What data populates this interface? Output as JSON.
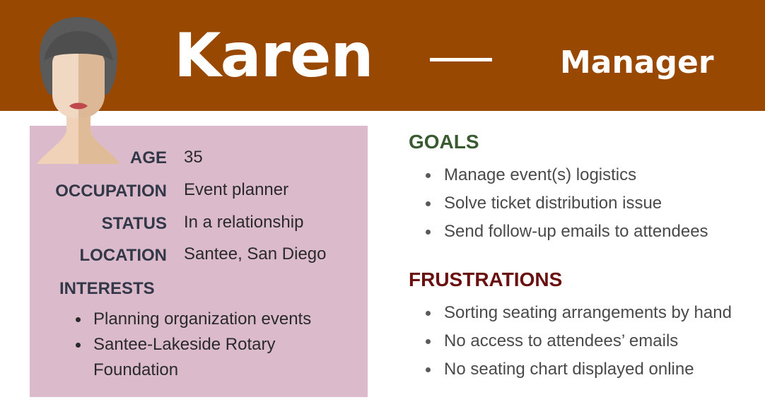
{
  "header": {
    "name": "Karen",
    "role": "Manager",
    "background": "#984800"
  },
  "profile": {
    "avatar_icon": "woman-avatar-icon",
    "card_color": "#dbbacb",
    "fields": [
      {
        "label": "AGE",
        "value": "35"
      },
      {
        "label": "OCCUPATION",
        "value": "Event planner"
      },
      {
        "label": "STATUS",
        "value": "In a relationship"
      },
      {
        "label": "LOCATION",
        "value": "Santee, San Diego"
      }
    ],
    "interests_label": "INTERESTS",
    "interests": [
      "Planning organization events",
      "Santee-Lakeside Rotary Foundation"
    ]
  },
  "goals": {
    "title": "GOALS",
    "color": "#3a5a30",
    "items": [
      "Manage event(s) logistics",
      "Solve ticket distribution issue",
      "Send follow-up emails to attendees"
    ]
  },
  "frustrations": {
    "title": "FRUSTRATIONS",
    "color": "#6a1010",
    "items": [
      "Sorting seating arrangements by hand",
      "No access to attendees’ emails",
      "No seating chart displayed online"
    ]
  }
}
